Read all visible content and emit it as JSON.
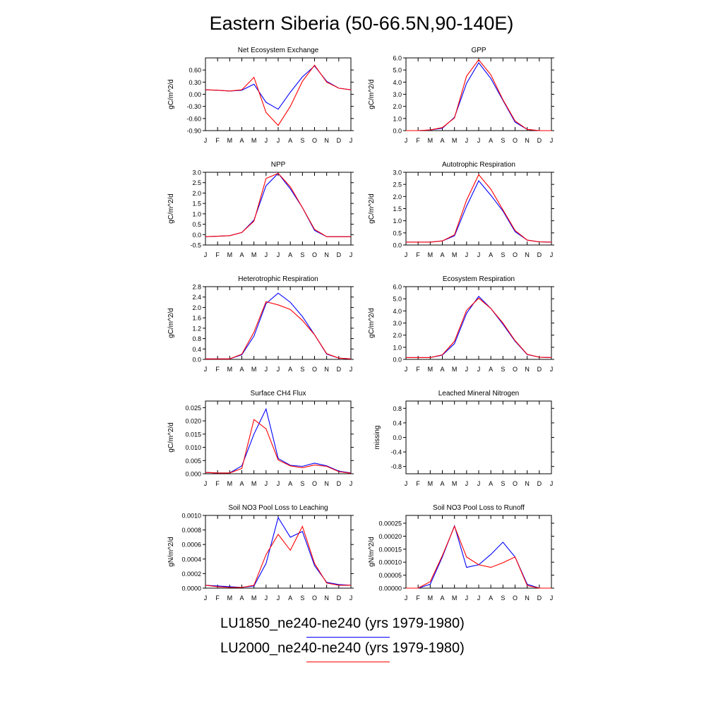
{
  "title": "Eastern Siberia (50-66.5N,90-140E)",
  "months": [
    "J",
    "F",
    "M",
    "A",
    "M",
    "J",
    "J",
    "A",
    "S",
    "O",
    "N",
    "D",
    "J"
  ],
  "series_style": [
    {
      "name": "LU1850_ne240-ne240 (yrs 1979-1980)",
      "color": "#0000ff"
    },
    {
      "name": "LU2000_ne240-ne240 (yrs 1979-1980)",
      "color": "#ff0000"
    }
  ],
  "legend": {
    "entry1": "LU1850_ne240-ne240 (yrs 1979-1980)",
    "entry2": "LU2000_ne240-ne240 (yrs 1979-1980)"
  },
  "chart_data": [
    {
      "type": "line",
      "title": "Net Ecosystem Exchange",
      "ylabel": "gC/m^2/d",
      "ylim": [
        -0.9,
        0.9
      ],
      "yticks": [
        -0.9,
        -0.6,
        -0.3,
        0.0,
        0.3,
        0.6
      ],
      "yticklabels": [
        "-0.90",
        "-0.60",
        "-0.30",
        "0.00",
        "0.30",
        "0.60"
      ],
      "series": [
        {
          "name": "LU1850_ne240-ne240 (yrs 1979-1980)",
          "values": [
            0.11,
            0.1,
            0.08,
            0.1,
            0.25,
            -0.2,
            -0.37,
            0.05,
            0.43,
            0.7,
            0.32,
            0.15,
            0.11
          ]
        },
        {
          "name": "LU2000_ne240-ne240 (yrs 1979-1980)",
          "values": [
            0.11,
            0.1,
            0.08,
            0.11,
            0.42,
            -0.45,
            -0.77,
            -0.3,
            0.32,
            0.72,
            0.3,
            0.15,
            0.11
          ]
        }
      ]
    },
    {
      "type": "line",
      "title": "GPP",
      "ylabel": "gC/m^2/d",
      "ylim": [
        0,
        6
      ],
      "yticks": [
        0,
        1,
        2,
        3,
        4,
        5,
        6
      ],
      "yticklabels": [
        "0.0",
        "1.0",
        "2.0",
        "3.0",
        "4.0",
        "5.0",
        "6.0"
      ],
      "series": [
        {
          "name": "LU1850_ne240-ne240 (yrs 1979-1980)",
          "values": [
            0.0,
            0.0,
            0.05,
            0.2,
            1.1,
            3.9,
            5.6,
            4.3,
            2.5,
            0.7,
            0.1,
            0.0,
            0.0
          ]
        },
        {
          "name": "LU2000_ne240-ne240 (yrs 1979-1980)",
          "values": [
            0.0,
            0.0,
            0.05,
            0.25,
            1.05,
            4.5,
            5.85,
            4.6,
            2.55,
            0.8,
            0.1,
            0.0,
            0.0
          ]
        }
      ]
    },
    {
      "type": "line",
      "title": "NPP",
      "ylabel": "gC/m^2/d",
      "ylim": [
        -0.5,
        3.0
      ],
      "yticks": [
        -0.5,
        0,
        0.5,
        1,
        1.5,
        2,
        2.5,
        3
      ],
      "yticklabels": [
        "-0.5",
        "0.0",
        "0.5",
        "1.0",
        "1.5",
        "2.0",
        "2.5",
        "3.0"
      ],
      "series": [
        {
          "name": "LU1850_ne240-ne240 (yrs 1979-1980)",
          "values": [
            -0.1,
            -0.08,
            -0.05,
            0.1,
            0.7,
            2.35,
            2.95,
            2.2,
            1.3,
            0.2,
            -0.1,
            -0.1,
            -0.1
          ]
        },
        {
          "name": "LU2000_ne240-ne240 (yrs 1979-1980)",
          "values": [
            -0.1,
            -0.08,
            -0.05,
            0.1,
            0.65,
            2.7,
            2.95,
            2.3,
            1.3,
            0.25,
            -0.1,
            -0.1,
            -0.1
          ]
        }
      ]
    },
    {
      "type": "line",
      "title": "Autotrophic Respiration",
      "ylabel": "gC/m^2/d",
      "ylim": [
        0,
        3.0
      ],
      "yticks": [
        0,
        0.5,
        1,
        1.5,
        2,
        2.5,
        3
      ],
      "yticklabels": [
        "0.0",
        "0.5",
        "1.0",
        "1.5",
        "2.0",
        "2.5",
        "3.0"
      ],
      "series": [
        {
          "name": "LU1850_ne240-ne240 (yrs 1979-1980)",
          "values": [
            0.12,
            0.12,
            0.12,
            0.17,
            0.38,
            1.6,
            2.65,
            2.05,
            1.4,
            0.55,
            0.2,
            0.13,
            0.12
          ]
        },
        {
          "name": "LU2000_ne240-ne240 (yrs 1979-1980)",
          "values": [
            0.12,
            0.12,
            0.12,
            0.17,
            0.42,
            1.85,
            2.9,
            2.3,
            1.45,
            0.6,
            0.2,
            0.13,
            0.12
          ]
        }
      ]
    },
    {
      "type": "line",
      "title": "Heterotrophic Respiration",
      "ylabel": "gC/m^2/d",
      "ylim": [
        0,
        2.8
      ],
      "yticks": [
        0,
        0.4,
        0.8,
        1.2,
        1.6,
        2.0,
        2.4,
        2.8
      ],
      "yticklabels": [
        "0.0",
        "0.4",
        "0.8",
        "1.2",
        "1.6",
        "2.0",
        "2.4",
        "2.8"
      ],
      "series": [
        {
          "name": "LU1850_ne240-ne240 (yrs 1979-1980)",
          "values": [
            0.02,
            0.02,
            0.02,
            0.18,
            0.9,
            2.15,
            2.55,
            2.2,
            1.65,
            0.95,
            0.2,
            0.05,
            0.02
          ]
        },
        {
          "name": "LU2000_ne240-ne240 (yrs 1979-1980)",
          "values": [
            0.02,
            0.02,
            0.02,
            0.2,
            1.05,
            2.22,
            2.1,
            1.92,
            1.5,
            0.95,
            0.22,
            0.05,
            0.02
          ]
        }
      ]
    },
    {
      "type": "line",
      "title": "Ecosystem Respiration",
      "ylabel": "gC/m^2/d",
      "ylim": [
        0,
        6
      ],
      "yticks": [
        0,
        1,
        2,
        3,
        4,
        5,
        6
      ],
      "yticklabels": [
        "0.0",
        "1.0",
        "2.0",
        "3.0",
        "4.0",
        "5.0",
        "6.0"
      ],
      "series": [
        {
          "name": "LU1850_ne240-ne240 (yrs 1979-1980)",
          "values": [
            0.15,
            0.15,
            0.15,
            0.35,
            1.3,
            3.8,
            5.2,
            4.2,
            2.9,
            1.5,
            0.4,
            0.18,
            0.15
          ]
        },
        {
          "name": "LU2000_ne240-ne240 (yrs 1979-1980)",
          "values": [
            0.15,
            0.15,
            0.15,
            0.38,
            1.5,
            4.05,
            5.05,
            4.2,
            3.0,
            1.55,
            0.42,
            0.18,
            0.15
          ]
        }
      ]
    },
    {
      "type": "line",
      "title": "Surface CH4 Flux",
      "ylabel": "gC/m^2/d",
      "ylim": [
        0,
        0.0275
      ],
      "yticks": [
        0,
        0.005,
        0.01,
        0.015,
        0.02,
        0.025
      ],
      "yticklabels": [
        "0.000",
        "0.005",
        "0.010",
        "0.015",
        "0.020",
        "0.025"
      ],
      "series": [
        {
          "name": "LU1850_ne240-ne240 (yrs 1979-1980)",
          "values": [
            0.0005,
            0.0003,
            0.0003,
            0.003,
            0.015,
            0.0245,
            0.0058,
            0.0032,
            0.0028,
            0.004,
            0.003,
            0.001,
            0.0003
          ]
        },
        {
          "name": "LU2000_ne240-ne240 (yrs 1979-1980)",
          "values": [
            0.0005,
            0.0003,
            0.0003,
            0.002,
            0.0205,
            0.017,
            0.0052,
            0.003,
            0.0023,
            0.0033,
            0.0028,
            0.0008,
            0.0002
          ]
        }
      ]
    },
    {
      "type": "line",
      "title": "Leached Mineral Nitrogen",
      "ylabel": "missing",
      "ylim": [
        -1.0,
        1.0
      ],
      "yticks": [
        -0.8,
        -0.4,
        0,
        0.4,
        0.8
      ],
      "yticklabels": [
        "-0.8",
        "-0.4",
        "0.0",
        "0.4",
        "0.8"
      ],
      "series": []
    },
    {
      "type": "line",
      "title": "Soil NO3 Pool Loss to Leaching",
      "ylabel": "gN/m^2/d",
      "ylim": [
        0,
        0.001
      ],
      "yticks": [
        0,
        0.0002,
        0.0004,
        0.0006,
        0.0008,
        0.001
      ],
      "yticklabels": [
        "0.0000",
        "0.0002",
        "0.0004",
        "0.0006",
        "0.0008",
        "0.0010"
      ],
      "series": [
        {
          "name": "LU1850_ne240-ne240 (yrs 1979-1980)",
          "values": [
            4e-05,
            3e-05,
            2e-05,
            1e-05,
            3e-05,
            0.00034,
            0.00097,
            0.0007,
            0.00078,
            0.00031,
            8e-05,
            5e-05,
            4e-05
          ]
        },
        {
          "name": "LU2000_ne240-ne240 (yrs 1979-1980)",
          "values": [
            4e-05,
            2e-05,
            1e-05,
            1e-05,
            4e-05,
            0.00046,
            0.00074,
            0.00052,
            0.00085,
            0.00034,
            7e-05,
            4e-05,
            4e-05
          ]
        }
      ]
    },
    {
      "type": "line",
      "title": "Soil NO3 Pool Loss to Runoff",
      "ylabel": "gN/m^2/d",
      "ylim": [
        0,
        0.00028
      ],
      "yticks": [
        0,
        5e-05,
        0.0001,
        0.00015,
        0.0002,
        0.00025
      ],
      "yticklabels": [
        "0.00000",
        "0.00005",
        "0.00010",
        "0.00015",
        "0.00020",
        "0.00025"
      ],
      "series": [
        {
          "name": "LU1850_ne240-ne240 (yrs 1979-1980)",
          "values": [
            0,
            0,
            1.5e-05,
            0.00012,
            0.00024,
            8e-05,
            9e-05,
            0.00013,
            0.000177,
            0.00012,
            1.5e-05,
            0,
            0
          ]
        },
        {
          "name": "LU2000_ne240-ne240 (yrs 1979-1980)",
          "values": [
            0,
            0,
            2.5e-05,
            0.000125,
            0.000238,
            0.00012,
            9e-05,
            8e-05,
            9.8e-05,
            0.00012,
            1e-05,
            0,
            0
          ]
        }
      ]
    }
  ]
}
